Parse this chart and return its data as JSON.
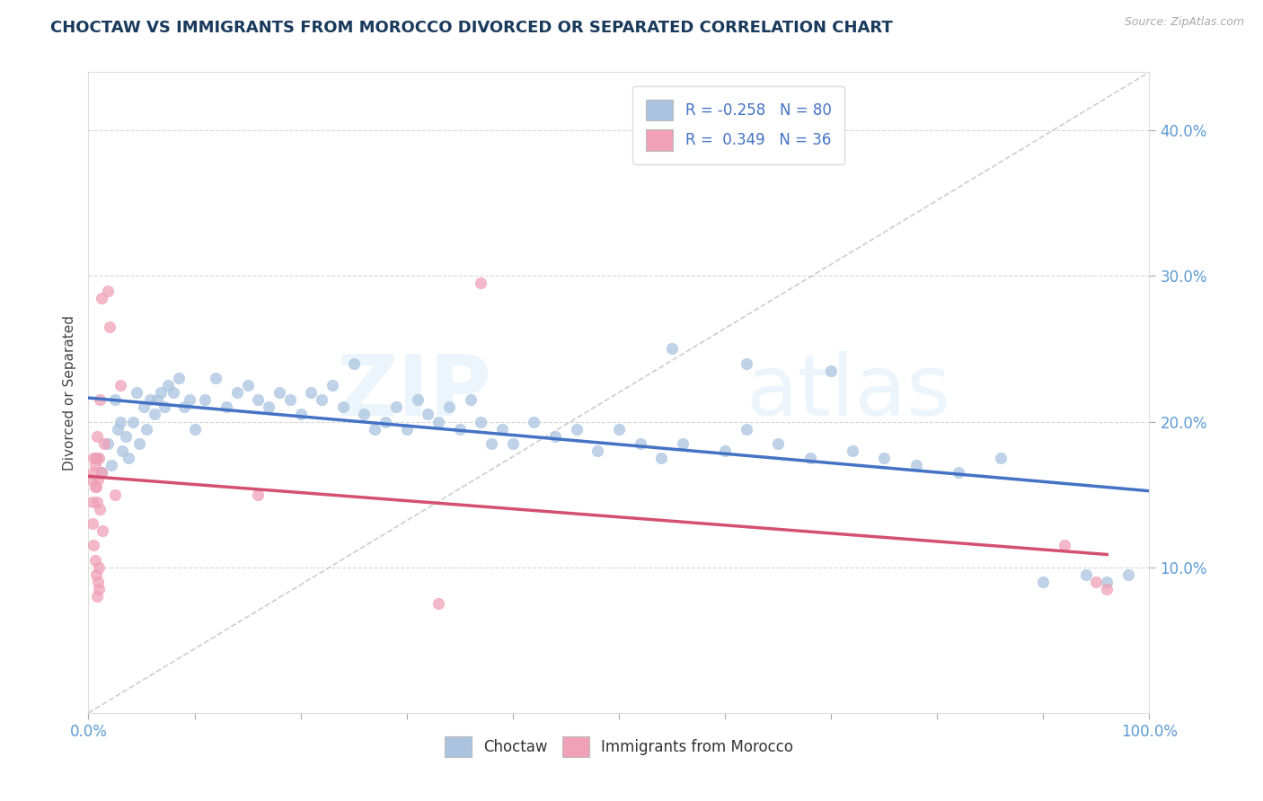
{
  "title": "CHOCTAW VS IMMIGRANTS FROM MOROCCO DIVORCED OR SEPARATED CORRELATION CHART",
  "source_text": "Source: ZipAtlas.com",
  "ylabel": "Divorced or Separated",
  "xlim": [
    0.0,
    1.0
  ],
  "ylim": [
    0.0,
    0.44
  ],
  "ytick_values": [
    0.1,
    0.2,
    0.3,
    0.4
  ],
  "legend_r1": "-0.258",
  "legend_n1": "80",
  "legend_r2": "0.349",
  "legend_n2": "36",
  "color_blue": "#aac4e0",
  "color_pink": "#f0a0b8",
  "line_blue": "#4472c4",
  "line_pink": "#d45070",
  "line_diag_color": "#c8c8c8",
  "background_color": "#ffffff",
  "title_color": "#1a3a5c",
  "title_fontsize": 13,
  "r_value_color": "#4472c4",
  "axis_label_color": "#5b9bd5",
  "grid_color": "#d8d8d8",
  "choctaw_x": [
    0.008,
    0.012,
    0.018,
    0.022,
    0.025,
    0.028,
    0.03,
    0.032,
    0.035,
    0.038,
    0.042,
    0.045,
    0.048,
    0.052,
    0.055,
    0.058,
    0.062,
    0.065,
    0.068,
    0.072,
    0.075,
    0.08,
    0.085,
    0.09,
    0.095,
    0.1,
    0.11,
    0.12,
    0.13,
    0.14,
    0.15,
    0.16,
    0.17,
    0.18,
    0.19,
    0.2,
    0.21,
    0.22,
    0.23,
    0.24,
    0.25,
    0.26,
    0.27,
    0.28,
    0.29,
    0.3,
    0.31,
    0.32,
    0.33,
    0.34,
    0.35,
    0.36,
    0.37,
    0.38,
    0.39,
    0.4,
    0.42,
    0.44,
    0.46,
    0.48,
    0.5,
    0.52,
    0.54,
    0.56,
    0.6,
    0.62,
    0.65,
    0.68,
    0.72,
    0.75,
    0.78,
    0.82,
    0.86,
    0.9,
    0.94,
    0.96,
    0.98,
    0.62,
    0.7,
    0.55
  ],
  "choctaw_y": [
    0.175,
    0.165,
    0.185,
    0.17,
    0.215,
    0.195,
    0.2,
    0.18,
    0.19,
    0.175,
    0.2,
    0.22,
    0.185,
    0.21,
    0.195,
    0.215,
    0.205,
    0.215,
    0.22,
    0.21,
    0.225,
    0.22,
    0.23,
    0.21,
    0.215,
    0.195,
    0.215,
    0.23,
    0.21,
    0.22,
    0.225,
    0.215,
    0.21,
    0.22,
    0.215,
    0.205,
    0.22,
    0.215,
    0.225,
    0.21,
    0.24,
    0.205,
    0.195,
    0.2,
    0.21,
    0.195,
    0.215,
    0.205,
    0.2,
    0.21,
    0.195,
    0.215,
    0.2,
    0.185,
    0.195,
    0.185,
    0.2,
    0.19,
    0.195,
    0.18,
    0.195,
    0.185,
    0.175,
    0.185,
    0.18,
    0.195,
    0.185,
    0.175,
    0.18,
    0.175,
    0.17,
    0.165,
    0.175,
    0.09,
    0.095,
    0.09,
    0.095,
    0.24,
    0.235,
    0.25
  ],
  "morocco_x": [
    0.003,
    0.004,
    0.004,
    0.005,
    0.005,
    0.005,
    0.006,
    0.006,
    0.006,
    0.007,
    0.007,
    0.007,
    0.008,
    0.008,
    0.008,
    0.009,
    0.009,
    0.01,
    0.01,
    0.01,
    0.011,
    0.011,
    0.012,
    0.012,
    0.013,
    0.015,
    0.018,
    0.02,
    0.025,
    0.03,
    0.16,
    0.33,
    0.37,
    0.92,
    0.95,
    0.96
  ],
  "morocco_y": [
    0.16,
    0.145,
    0.13,
    0.115,
    0.165,
    0.175,
    0.105,
    0.155,
    0.17,
    0.095,
    0.155,
    0.175,
    0.08,
    0.145,
    0.19,
    0.09,
    0.16,
    0.085,
    0.1,
    0.175,
    0.14,
    0.215,
    0.285,
    0.165,
    0.125,
    0.185,
    0.29,
    0.265,
    0.15,
    0.225,
    0.15,
    0.075,
    0.295,
    0.115,
    0.09,
    0.085
  ]
}
